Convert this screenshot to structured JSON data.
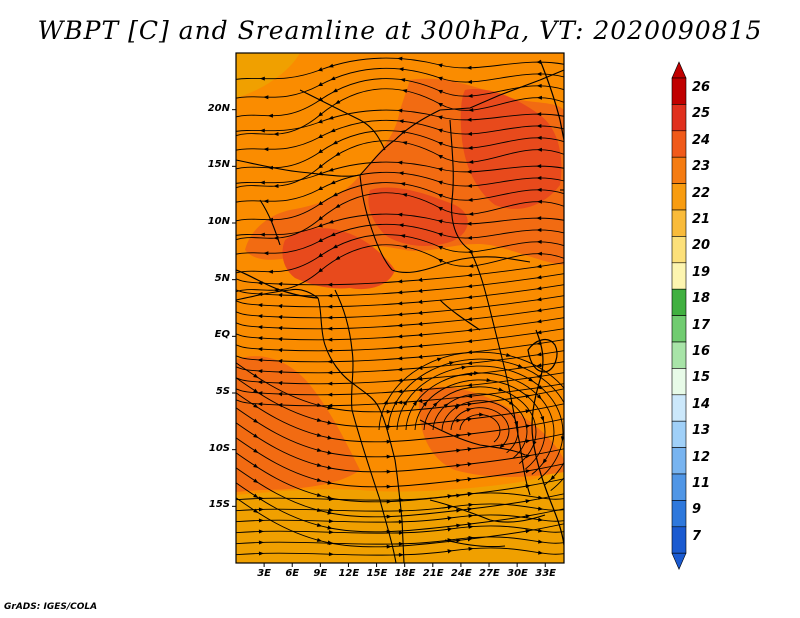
{
  "title": "WBPT [C] and Sreamline at 300hPa, VT: 2020090815",
  "credit": "GrADS: IGES/COLA",
  "map": {
    "lat_labels": [
      "20N",
      "15N",
      "10N",
      "5N",
      "EQ",
      "5S",
      "10S",
      "15S"
    ],
    "lon_labels": [
      "3E",
      "6E",
      "9E",
      "12E",
      "15E",
      "18E",
      "21E",
      "24E",
      "27E",
      "30E",
      "33E"
    ],
    "lon_range": [
      0,
      35
    ],
    "lat_range": [
      -20,
      25
    ],
    "field_colors": {
      "c21": "#f0a000",
      "c22": "#fa8c00",
      "c23": "#f26b12",
      "c24": "#e84a1c"
    }
  },
  "colorbar": {
    "labels": [
      "26",
      "25",
      "24",
      "23",
      "22",
      "21",
      "20",
      "19",
      "18",
      "17",
      "16",
      "15",
      "14",
      "13",
      "12",
      "11",
      "9",
      "7"
    ],
    "colors": [
      "#c00000",
      "#e0301e",
      "#f05a1a",
      "#f57c12",
      "#f89c10",
      "#f9bb3a",
      "#fce07a",
      "#fdf5b0",
      "#40b040",
      "#70cc70",
      "#a8e4a8",
      "#e8fbe8",
      "#cce8fb",
      "#a0d0f8",
      "#78b4f0",
      "#5096e6",
      "#2e78dc",
      "#1a5ad0"
    ]
  }
}
